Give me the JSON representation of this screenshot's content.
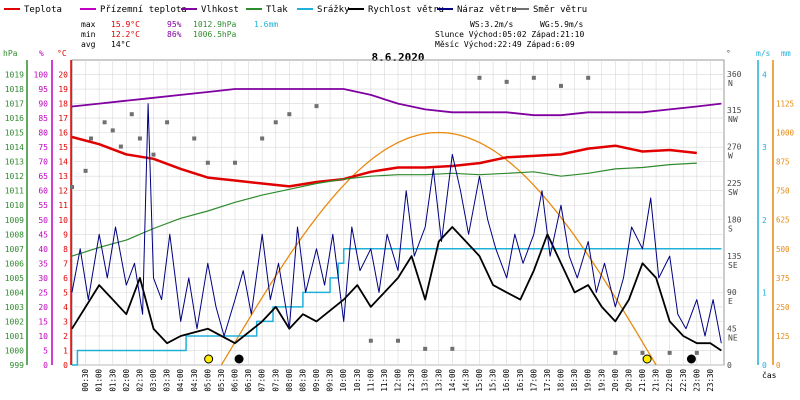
{
  "legend": [
    {
      "label": "Teplota",
      "color": "#e00000"
    },
    {
      "label": "Přízemní teplota",
      "color": "#c000c0"
    },
    {
      "label": "Vlhkost",
      "color": "#8000a0"
    },
    {
      "label": "Tlak",
      "color": "#2e8b2e"
    },
    {
      "label": "Srážky",
      "color": "#20b0d8"
    },
    {
      "label": "Rychlost větru",
      "color": "#000000"
    },
    {
      "label": "Náraz větru",
      "color": "#000080"
    },
    {
      "label": "Směr větru",
      "color": "#707070"
    }
  ],
  "stats": {
    "max": {
      "label": "max",
      "temp": "15.9°C",
      "hum": "95%",
      "press": "1012.9hPa",
      "rain": "1.6mm"
    },
    "min": {
      "label": "min",
      "temp": "12.2°C",
      "hum": "86%",
      "press": "1006.5hPa"
    },
    "avg": {
      "label": "avg",
      "temp": "14°C"
    }
  },
  "info": {
    "ws": "WS:3.2m/s",
    "wg": "WG:5.9m/s",
    "sun": "Slunce Východ:05:02  Západ:21:10",
    "moon": "Měsíc  Východ:22:49  Západ:6:09"
  },
  "title": "8.6.2020",
  "x_label": "čas",
  "axis_units": {
    "hpa": "hPa",
    "pct": "%",
    "degc": "°C",
    "deg": "°",
    "ms": "m/s",
    "mm": "mm"
  },
  "colors": {
    "temp": "#e00000",
    "hum": "#8000a0",
    "press": "#2e8b2e",
    "rain": "#20b0d8",
    "wind": "#000000",
    "gust": "#000080",
    "dir": "#707070",
    "solar": "#e88a10",
    "grid": "#d8d8d8"
  },
  "chart_data": {
    "type": "line",
    "title": "8.6.2020",
    "x_ticks": [
      "00:30",
      "01:00",
      "01:30",
      "02:00",
      "02:30",
      "03:00",
      "03:30",
      "04:00",
      "04:30",
      "05:00",
      "05:30",
      "06:00",
      "06:30",
      "07:00",
      "07:30",
      "08:00",
      "08:30",
      "09:00",
      "09:30",
      "10:00",
      "10:30",
      "11:00",
      "11:30",
      "12:00",
      "12:30",
      "13:00",
      "13:30",
      "14:00",
      "14:30",
      "15:00",
      "15:30",
      "16:00",
      "16:30",
      "17:00",
      "17:30",
      "18:00",
      "18:30",
      "19:00",
      "19:30",
      "20:00",
      "20:30",
      "21:00",
      "21:30",
      "22:00",
      "22:30",
      "23:00",
      "23:30"
    ],
    "axes": {
      "pressure_hpa": {
        "min": 999,
        "max": 1020,
        "ticks": [
          999,
          1000,
          1001,
          1002,
          1003,
          1004,
          1005,
          1006,
          1007,
          1008,
          1009,
          1010,
          1011,
          1012,
          1013,
          1014,
          1015,
          1016,
          1017,
          1018,
          1019
        ]
      },
      "humidity_pct": {
        "min": 0,
        "max": 105,
        "ticks": [
          0,
          5,
          10,
          15,
          20,
          25,
          30,
          35,
          40,
          45,
          50,
          55,
          60,
          65,
          70,
          75,
          80,
          85,
          90,
          95,
          100
        ]
      },
      "temperature_c": {
        "min": 0,
        "max": 21,
        "ticks": [
          0,
          1,
          2,
          3,
          4,
          5,
          6,
          7,
          8,
          9,
          10,
          11,
          12,
          13,
          14,
          15,
          16,
          17,
          18,
          19,
          20
        ]
      },
      "direction": {
        "min": 0,
        "max": 377,
        "ticks": [
          {
            "v": 0,
            "l": "0"
          },
          {
            "v": 45,
            "l": "45 NE"
          },
          {
            "v": 90,
            "l": "90 E"
          },
          {
            "v": 135,
            "l": "135 SE"
          },
          {
            "v": 180,
            "l": "180 S"
          },
          {
            "v": 225,
            "l": "225 SW"
          },
          {
            "v": 270,
            "l": "270 W"
          },
          {
            "v": 315,
            "l": "315 NW"
          },
          {
            "v": 360,
            "l": "360 N"
          }
        ]
      },
      "wind_ms": {
        "min": 0,
        "max": 4.2,
        "ticks": [
          0,
          1,
          2,
          3,
          4
        ]
      },
      "rain_mm": {
        "min": 0,
        "max": 4.2,
        "ticks": [
          0,
          1,
          2,
          3,
          4
        ]
      },
      "solar": {
        "min": 0,
        "max": 1312,
        "ticks": [
          0,
          125,
          250,
          375,
          500,
          625,
          750,
          875,
          1000,
          1125
        ]
      }
    },
    "series": [
      {
        "name": "Teplota",
        "axis": "temperature_c",
        "points": [
          [
            0,
            15.7
          ],
          [
            1,
            15.2
          ],
          [
            2,
            14.5
          ],
          [
            3,
            14.2
          ],
          [
            4,
            13.5
          ],
          [
            5,
            12.9
          ],
          [
            6,
            12.7
          ],
          [
            7,
            12.5
          ],
          [
            8,
            12.3
          ],
          [
            9,
            12.6
          ],
          [
            10,
            12.8
          ],
          [
            11,
            13.3
          ],
          [
            12,
            13.6
          ],
          [
            13,
            13.6
          ],
          [
            14,
            13.7
          ],
          [
            15,
            13.9
          ],
          [
            16,
            14.3
          ],
          [
            17,
            14.4
          ],
          [
            18,
            14.5
          ],
          [
            19,
            14.9
          ],
          [
            20,
            15.1
          ],
          [
            21,
            14.7
          ],
          [
            22,
            14.8
          ],
          [
            23,
            14.6
          ]
        ]
      },
      {
        "name": "Vlhkost",
        "axis": "humidity_pct",
        "points": [
          [
            0,
            89
          ],
          [
            1,
            90
          ],
          [
            2,
            91
          ],
          [
            3,
            92
          ],
          [
            4,
            93
          ],
          [
            5,
            94
          ],
          [
            6,
            95
          ],
          [
            7,
            95
          ],
          [
            8,
            95
          ],
          [
            9,
            95
          ],
          [
            10,
            95
          ],
          [
            11,
            93
          ],
          [
            12,
            90
          ],
          [
            13,
            88
          ],
          [
            14,
            87
          ],
          [
            15,
            87
          ],
          [
            16,
            87
          ],
          [
            17,
            86
          ],
          [
            18,
            86
          ],
          [
            19,
            87
          ],
          [
            20,
            87
          ],
          [
            21,
            87
          ],
          [
            22,
            88
          ],
          [
            23,
            89
          ],
          [
            23.9,
            90
          ]
        ]
      },
      {
        "name": "Tlak",
        "axis": "pressure_hpa",
        "points": [
          [
            0,
            1006.5
          ],
          [
            1,
            1007.1
          ],
          [
            2,
            1007.6
          ],
          [
            3,
            1008.4
          ],
          [
            4,
            1009.1
          ],
          [
            5,
            1009.6
          ],
          [
            6,
            1010.2
          ],
          [
            7,
            1010.7
          ],
          [
            8,
            1011.1
          ],
          [
            9,
            1011.5
          ],
          [
            10,
            1011.8
          ],
          [
            11,
            1012.0
          ],
          [
            12,
            1012.1
          ],
          [
            13,
            1012.1
          ],
          [
            14,
            1012.2
          ],
          [
            15,
            1012.1
          ],
          [
            16,
            1012.2
          ],
          [
            17,
            1012.3
          ],
          [
            18,
            1012.0
          ],
          [
            19,
            1012.2
          ],
          [
            20,
            1012.5
          ],
          [
            21,
            1012.6
          ],
          [
            22,
            1012.8
          ],
          [
            23,
            1012.9
          ]
        ]
      },
      {
        "name": "Srážky",
        "axis": "rain_mm",
        "points": [
          [
            0,
            0
          ],
          [
            0.2,
            0.2
          ],
          [
            4.1,
            0.2
          ],
          [
            4.2,
            0.4
          ],
          [
            6.8,
            0.6
          ],
          [
            7.4,
            0.8
          ],
          [
            8.5,
            1.0
          ],
          [
            9.5,
            1.2
          ],
          [
            9.8,
            1.4
          ],
          [
            10.0,
            1.6
          ],
          [
            23.9,
            1.6
          ]
        ]
      },
      {
        "name": "Rychlost větru",
        "axis": "wind_ms",
        "points": [
          [
            0,
            0.5
          ],
          [
            0.5,
            0.8
          ],
          [
            1,
            1.1
          ],
          [
            1.5,
            0.9
          ],
          [
            2,
            0.7
          ],
          [
            2.5,
            1.2
          ],
          [
            3,
            0.5
          ],
          [
            3.5,
            0.3
          ],
          [
            4,
            0.4
          ],
          [
            5,
            0.5
          ],
          [
            6,
            0.3
          ],
          [
            7,
            0.6
          ],
          [
            7.5,
            0.8
          ],
          [
            8,
            0.5
          ],
          [
            8.5,
            0.7
          ],
          [
            9,
            0.6
          ],
          [
            10,
            0.9
          ],
          [
            10.5,
            1.1
          ],
          [
            11,
            0.8
          ],
          [
            12,
            1.2
          ],
          [
            12.5,
            1.5
          ],
          [
            13,
            0.9
          ],
          [
            13.5,
            1.7
          ],
          [
            14,
            1.9
          ],
          [
            14.5,
            1.7
          ],
          [
            15,
            1.5
          ],
          [
            15.5,
            1.1
          ],
          [
            16,
            1.0
          ],
          [
            16.5,
            0.9
          ],
          [
            17,
            1.3
          ],
          [
            17.5,
            1.8
          ],
          [
            18,
            1.4
          ],
          [
            18.5,
            1.0
          ],
          [
            19,
            1.1
          ],
          [
            19.5,
            0.8
          ],
          [
            20,
            0.6
          ],
          [
            20.5,
            0.9
          ],
          [
            21,
            1.4
          ],
          [
            21.5,
            1.2
          ],
          [
            22,
            0.6
          ],
          [
            22.5,
            0.4
          ],
          [
            23,
            0.3
          ],
          [
            23.5,
            0.3
          ],
          [
            23.9,
            0.2
          ]
        ]
      },
      {
        "name": "Náraz větru",
        "axis": "wind_ms",
        "points": [
          [
            0,
            1.0
          ],
          [
            0.3,
            1.6
          ],
          [
            0.6,
            0.9
          ],
          [
            1,
            1.8
          ],
          [
            1.3,
            1.2
          ],
          [
            1.6,
            1.9
          ],
          [
            2,
            1.1
          ],
          [
            2.3,
            1.4
          ],
          [
            2.6,
            0.7
          ],
          [
            2.8,
            3.6
          ],
          [
            3,
            1.2
          ],
          [
            3.3,
            0.9
          ],
          [
            3.6,
            1.8
          ],
          [
            4,
            0.6
          ],
          [
            4.3,
            1.2
          ],
          [
            4.6,
            0.5
          ],
          [
            5,
            1.4
          ],
          [
            5.3,
            0.8
          ],
          [
            5.6,
            0.4
          ],
          [
            6,
            0.9
          ],
          [
            6.3,
            1.3
          ],
          [
            6.6,
            0.7
          ],
          [
            7,
            1.8
          ],
          [
            7.3,
            0.9
          ],
          [
            7.6,
            1.4
          ],
          [
            8,
            0.5
          ],
          [
            8.3,
            1.9
          ],
          [
            8.6,
            1.0
          ],
          [
            9,
            1.6
          ],
          [
            9.3,
            1.1
          ],
          [
            9.6,
            1.8
          ],
          [
            10,
            0.6
          ],
          [
            10.3,
            1.9
          ],
          [
            10.6,
            1.3
          ],
          [
            11,
            1.6
          ],
          [
            11.3,
            1.0
          ],
          [
            11.6,
            1.8
          ],
          [
            12,
            1.3
          ],
          [
            12.3,
            2.4
          ],
          [
            12.6,
            1.5
          ],
          [
            13,
            1.9
          ],
          [
            13.3,
            2.7
          ],
          [
            13.6,
            1.7
          ],
          [
            14,
            2.9
          ],
          [
            14.3,
            2.4
          ],
          [
            14.6,
            1.8
          ],
          [
            15,
            2.6
          ],
          [
            15.3,
            2.0
          ],
          [
            15.6,
            1.6
          ],
          [
            16,
            1.2
          ],
          [
            16.3,
            1.8
          ],
          [
            16.6,
            1.4
          ],
          [
            17,
            1.8
          ],
          [
            17.3,
            2.4
          ],
          [
            17.6,
            1.5
          ],
          [
            18,
            2.2
          ],
          [
            18.3,
            1.5
          ],
          [
            18.6,
            1.2
          ],
          [
            19,
            1.7
          ],
          [
            19.3,
            1.0
          ],
          [
            19.6,
            1.4
          ],
          [
            20,
            0.8
          ],
          [
            20.3,
            1.2
          ],
          [
            20.6,
            1.9
          ],
          [
            21,
            1.6
          ],
          [
            21.3,
            2.3
          ],
          [
            21.6,
            1.2
          ],
          [
            22,
            1.5
          ],
          [
            22.3,
            0.7
          ],
          [
            22.6,
            0.5
          ],
          [
            23,
            0.9
          ],
          [
            23.3,
            0.4
          ],
          [
            23.6,
            0.9
          ],
          [
            23.9,
            0.3
          ]
        ]
      },
      {
        "name": "Směr větru",
        "axis": "direction",
        "points": [
          [
            0,
            220
          ],
          [
            0.5,
            240
          ],
          [
            0.7,
            280
          ],
          [
            1.2,
            300
          ],
          [
            1.5,
            290
          ],
          [
            1.8,
            270
          ],
          [
            2.2,
            310
          ],
          [
            2.5,
            280
          ],
          [
            3,
            260
          ],
          [
            3.5,
            300
          ],
          [
            4.5,
            280
          ],
          [
            5,
            250
          ],
          [
            6,
            250
          ],
          [
            7,
            280
          ],
          [
            7.5,
            300
          ],
          [
            8,
            310
          ],
          [
            9,
            320
          ],
          [
            11,
            30
          ],
          [
            12,
            30
          ],
          [
            13,
            20
          ],
          [
            14,
            20
          ],
          [
            15,
            355
          ],
          [
            16,
            350
          ],
          [
            17,
            355
          ],
          [
            18,
            345
          ],
          [
            19,
            355
          ],
          [
            20,
            15
          ],
          [
            21,
            15
          ],
          [
            22,
            15
          ],
          [
            23,
            15
          ]
        ]
      }
    ],
    "solar_curve": {
      "name": "solar",
      "axis": "solar",
      "rise": 5.5,
      "set": 21.5,
      "peak_time": 14.5,
      "peak": 1000
    },
    "markers": [
      {
        "type": "sunrise",
        "t": 5.03,
        "color": "#ffee00"
      },
      {
        "type": "moonset",
        "t": 6.15,
        "color": "#000000"
      },
      {
        "type": "sunset",
        "t": 21.17,
        "color": "#ffee00"
      },
      {
        "type": "moonrise",
        "t": 22.8,
        "color": "#000000"
      }
    ]
  }
}
